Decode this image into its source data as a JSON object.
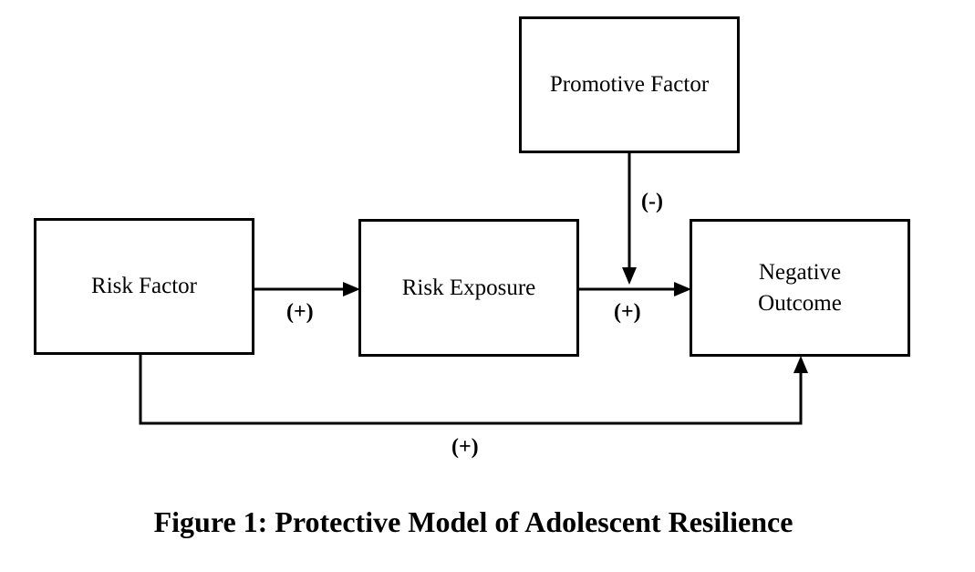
{
  "diagram": {
    "nodes": {
      "promotive": "Promotive Factor",
      "risk_factor": "Risk Factor",
      "risk_exposure": "Risk Exposure",
      "negative_outcome": "Negative\nOutcome"
    },
    "edges": {
      "risk_factor_to_exposure": "(+)",
      "exposure_to_outcome": "(+)",
      "promotive_effect": "(-)",
      "risk_factor_to_outcome": "(+)"
    }
  },
  "caption": "Figure 1: Protective Model of Adolescent Resilience",
  "colors": {
    "line": "#000000",
    "background": "#ffffff"
  }
}
